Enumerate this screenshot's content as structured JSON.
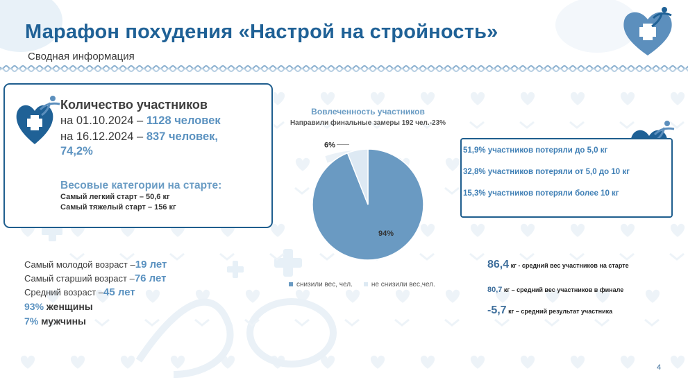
{
  "header": {
    "title": "Марафон похудения «Настрой на стройность»",
    "subtitle": "Сводная информация"
  },
  "participants": {
    "title": "Количество участников",
    "line1_date": "на 01.10.2024",
    "line1_dash": " – ",
    "line1_value": "1128 человек",
    "line2_date": "на 16.12.2024",
    "line2_dash": " – ",
    "line2_value": "837 человек,",
    "line3_value": "74,2%"
  },
  "weights": {
    "title": "Весовые категории на старте:",
    "lightest": "Самый легкий старт – 50,6 кг",
    "heaviest": "Самый тяжелый старт – 156 кг"
  },
  "ages": {
    "youngest_label": "Самый молодой возраст –",
    "youngest_value": "19 лет",
    "oldest_label": "Самый старший возраст –",
    "oldest_value": "76 лет",
    "average_label": "Средний возраст –",
    "average_value": "45 лет",
    "women_pct": "93%",
    "women_label": " женщины",
    "men_pct": "7%",
    "men_label": "   мужчины"
  },
  "weight_loss": {
    "line1": "51,9% участников потеряли до 5,0 кг",
    "line2": "32,8% участников потеряли от 5,0 до 10 кг",
    "line3": "15,3% участников потеряли более 10 кг"
  },
  "stats": {
    "avg_start_value": "86,4",
    "avg_start_label": " кг - средний вес участников на старте",
    "avg_final_value": "80,7",
    "avg_final_label": " кг – средний вес участников в финале",
    "avg_result_value": "-5,7",
    "avg_result_label": " кг – средний результат участника"
  },
  "page_number": "4",
  "colors": {
    "accent_dark": "#1f6196",
    "accent_light": "#5b92c0",
    "pie_main": "#6a9ac2",
    "pie_minor": "#dde9f3"
  },
  "chart_data": {
    "type": "pie",
    "title": "Вовлеченность участников",
    "subtitle": "Направили финальные замеры 192 чел.-23%",
    "categories": [
      "снизили вес, чел.",
      "не снизили вес,чел."
    ],
    "values": [
      94,
      6
    ],
    "data_labels": [
      "94%",
      "6%"
    ],
    "legend_position": "bottom"
  }
}
